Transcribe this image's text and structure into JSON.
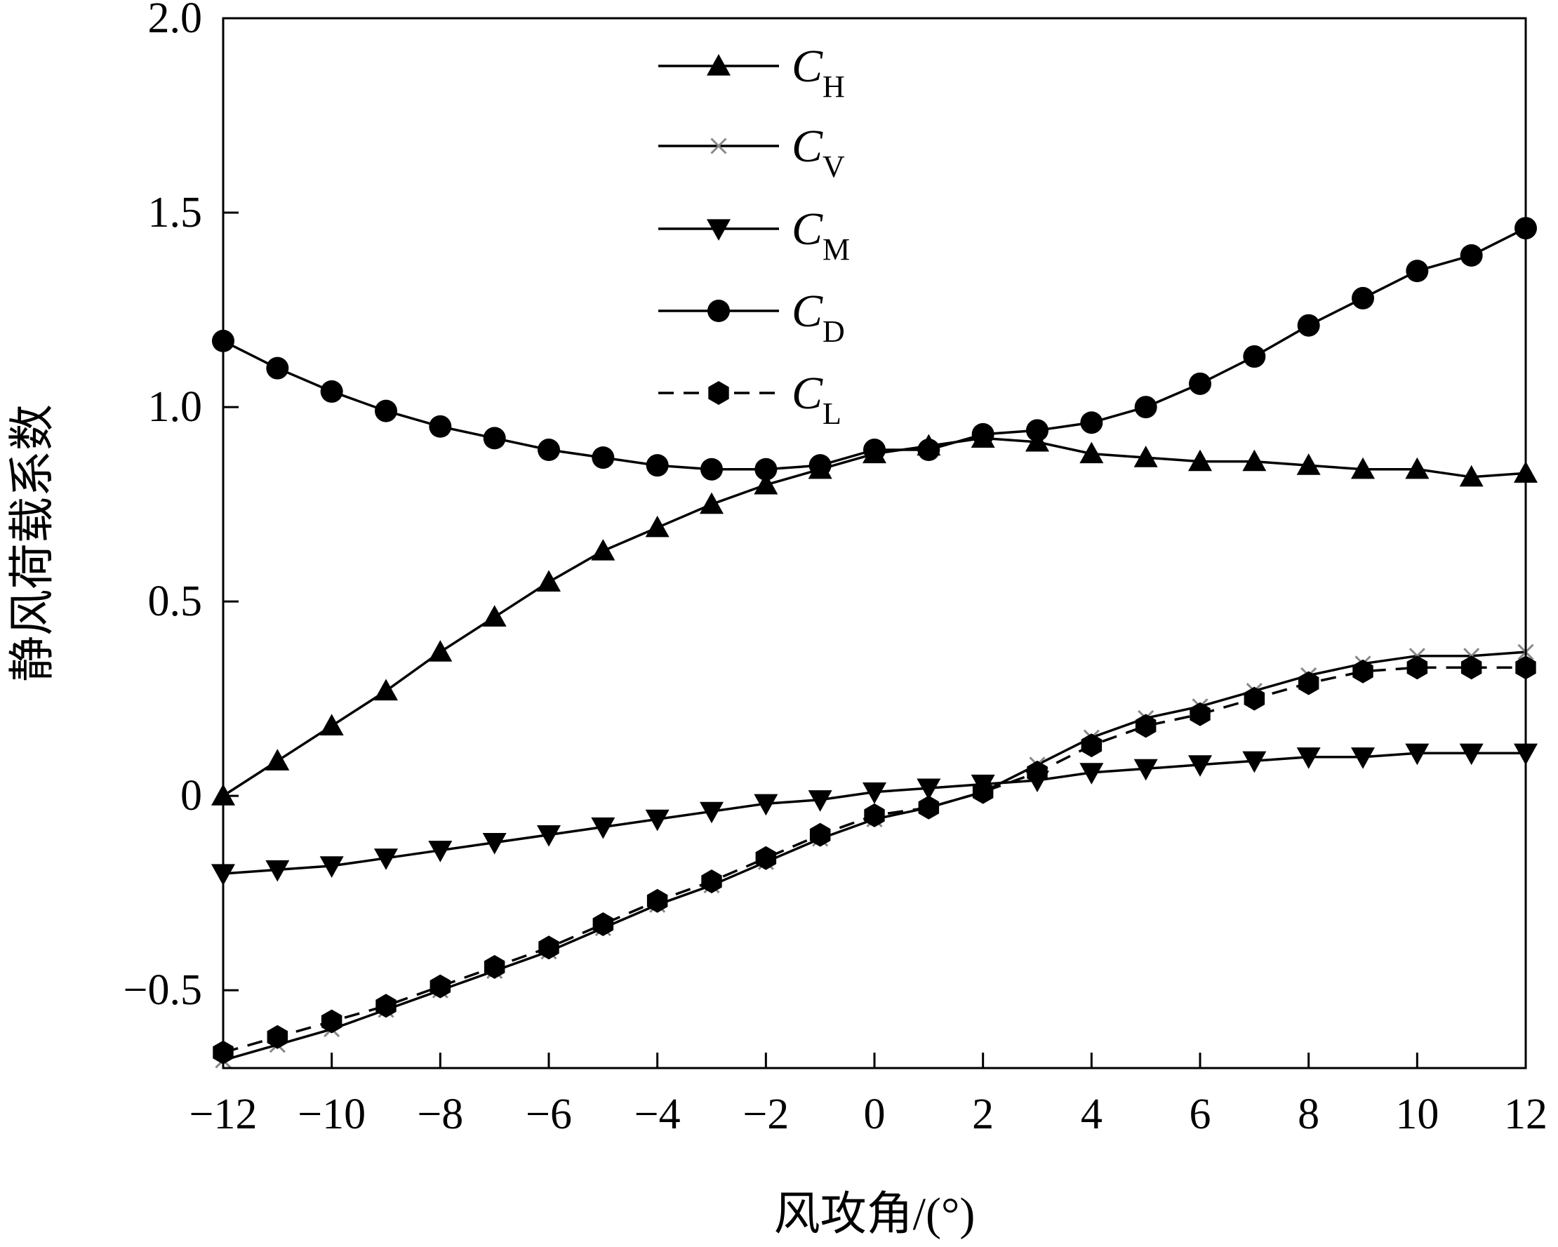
{
  "chart_data": {
    "type": "line",
    "xlabel": "风攻角/(°)",
    "ylabel": "静风荷载系数",
    "xlim": [
      -12,
      12
    ],
    "ylim": [
      -0.7,
      2.0
    ],
    "x_ticks": [
      -12,
      -10,
      -8,
      -6,
      -4,
      -2,
      0,
      2,
      4,
      6,
      8,
      10,
      12
    ],
    "x_tick_labels": [
      "−12",
      "−10",
      "−8",
      "−6",
      "−4",
      "−2",
      "0",
      "2",
      "4",
      "6",
      "8",
      "10",
      "12"
    ],
    "y_ticks": [
      -0.5,
      0,
      0.5,
      1.0,
      1.5,
      2.0
    ],
    "y_tick_labels": [
      "−0.5",
      "0",
      "0.5",
      "1.0",
      "1.5",
      "2.0"
    ],
    "grid": false,
    "legend_position": "top-center",
    "x": [
      -12,
      -11,
      -10,
      -9,
      -8,
      -7,
      -6,
      -5,
      -4,
      -3,
      -2,
      -1,
      0,
      1,
      2,
      3,
      4,
      5,
      6,
      7,
      8,
      9,
      10,
      11,
      12
    ],
    "series": [
      {
        "name": "C",
        "subscript": "H",
        "marker": "triangle-up",
        "line": "solid",
        "color": "#000000",
        "values": [
          0.0,
          0.09,
          0.18,
          0.27,
          0.37,
          0.46,
          0.55,
          0.63,
          0.69,
          0.75,
          0.8,
          0.84,
          0.88,
          0.9,
          0.92,
          0.91,
          0.88,
          0.87,
          0.86,
          0.86,
          0.85,
          0.84,
          0.84,
          0.82,
          0.83
        ]
      },
      {
        "name": "C",
        "subscript": "V",
        "marker": "x",
        "line": "solid",
        "color": "#888888",
        "values": [
          -0.68,
          -0.64,
          -0.6,
          -0.55,
          -0.5,
          -0.45,
          -0.4,
          -0.34,
          -0.28,
          -0.23,
          -0.17,
          -0.11,
          -0.06,
          -0.03,
          0.01,
          0.08,
          0.15,
          0.2,
          0.23,
          0.27,
          0.31,
          0.34,
          0.36,
          0.36,
          0.37
        ]
      },
      {
        "name": "C",
        "subscript": "M",
        "marker": "triangle-down",
        "line": "solid",
        "color": "#000000",
        "values": [
          -0.2,
          -0.19,
          -0.18,
          -0.16,
          -0.14,
          -0.12,
          -0.1,
          -0.08,
          -0.06,
          -0.04,
          -0.02,
          -0.01,
          0.01,
          0.02,
          0.03,
          0.04,
          0.06,
          0.07,
          0.08,
          0.09,
          0.1,
          0.1,
          0.11,
          0.11,
          0.11
        ]
      },
      {
        "name": "C",
        "subscript": "D",
        "marker": "circle",
        "line": "solid",
        "color": "#000000",
        "values": [
          1.17,
          1.1,
          1.04,
          0.99,
          0.95,
          0.92,
          0.89,
          0.87,
          0.85,
          0.84,
          0.84,
          0.85,
          0.89,
          0.89,
          0.93,
          0.94,
          0.96,
          1.0,
          1.06,
          1.13,
          1.21,
          1.28,
          1.35,
          1.39,
          1.46
        ]
      },
      {
        "name": "C",
        "subscript": "L",
        "marker": "hexagon",
        "line": "dashed",
        "color": "#000000",
        "values": [
          -0.66,
          -0.62,
          -0.58,
          -0.54,
          -0.49,
          -0.44,
          -0.39,
          -0.33,
          -0.27,
          -0.22,
          -0.16,
          -0.1,
          -0.05,
          -0.03,
          0.01,
          0.06,
          0.13,
          0.18,
          0.21,
          0.25,
          0.29,
          0.32,
          0.33,
          0.33,
          0.33
        ]
      }
    ]
  }
}
